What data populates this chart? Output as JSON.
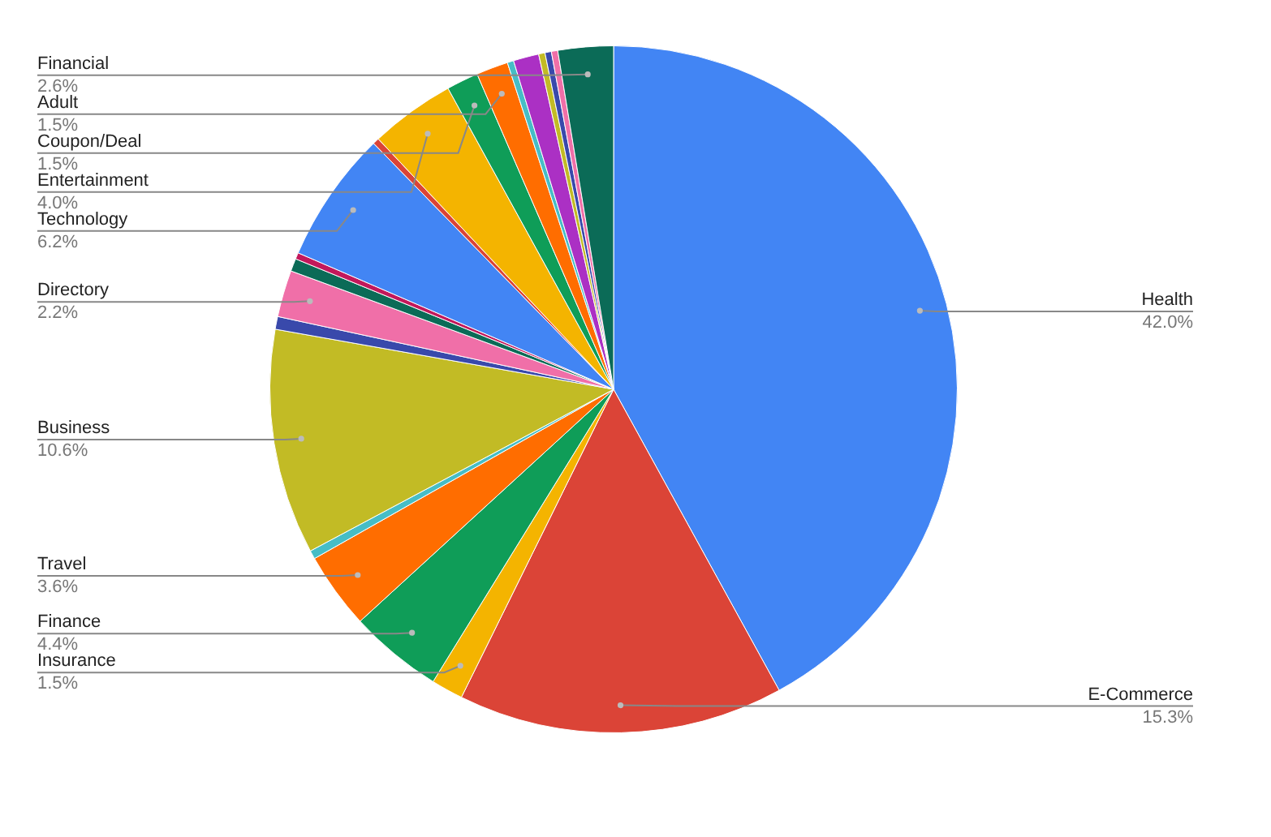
{
  "chart_data": {
    "type": "pie",
    "categories": [
      "Health",
      "E-Commerce",
      "Insurance",
      "Finance",
      "Travel",
      null,
      "Business",
      null,
      "Directory",
      null,
      null,
      "Technology",
      null,
      "Entertainment",
      "Coupon/Deal",
      "Adult",
      null,
      null,
      null,
      null,
      null,
      "Financial"
    ],
    "values": [
      42.0,
      15.3,
      1.5,
      4.4,
      3.6,
      0.4,
      10.6,
      0.6,
      2.2,
      0.6,
      0.3,
      6.2,
      0.3,
      4.0,
      1.5,
      1.5,
      0.3,
      1.2,
      0.3,
      0.3,
      0.3,
      2.6
    ],
    "colors": [
      "#4285f4",
      "#db4437",
      "#f4b400",
      "#0f9d58",
      "#ff6d00",
      "#46bdc6",
      "#c2bb25",
      "#3949ab",
      "#f06fa8",
      "#0b6b57",
      "#c2185b",
      "#4285f4",
      "#db4437",
      "#f4b400",
      "#0f9d58",
      "#ff6d00",
      "#46bdc6",
      "#ab30c4",
      "#c2bb25",
      "#3949ab",
      "#f06fa8",
      "#0b6b57"
    ],
    "value_labels": [
      "42.0%",
      "15.3%",
      "1.5%",
      "4.4%",
      "3.6%",
      null,
      "10.6%",
      null,
      "2.2%",
      null,
      null,
      "6.2%",
      null,
      "4.0%",
      "1.5%",
      "1.5%",
      null,
      null,
      null,
      null,
      null,
      "2.6%"
    ]
  }
}
